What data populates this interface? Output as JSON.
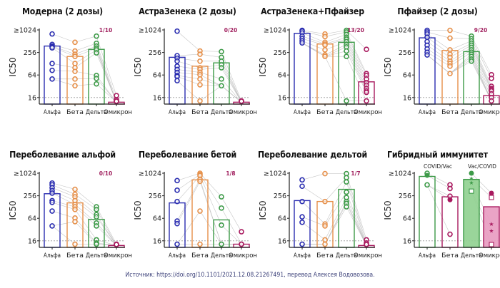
{
  "colors": {
    "alpha": "#2a2db0",
    "beta": "#e6904a",
    "delta": "#3d9a48",
    "omicron": "#a8195e",
    "link": "#bdbdbd",
    "threshold": "#9a9a9a",
    "hybrid_alpha_fill": "#ffffff",
    "hybrid_delta_fill": "#8fd08f",
    "hybrid_omicron_fill": "#e89ac0"
  },
  "source": "Источник: https://doi.org/10.1101/2021.12.08.21267491, перевод Алексея Водовозова.",
  "chart_data": [
    {
      "type": "bar",
      "title": "Модерна (2 дозы)",
      "ylabel": "IC50",
      "yscale": "log2",
      "ylim": [
        11,
        1024
      ],
      "yticks": [
        "16",
        "64",
        "256",
        "≥1024"
      ],
      "threshold": 16,
      "categories": [
        "Альфа",
        "Бета",
        "Дельта",
        "Омикрон"
      ],
      "annotation": "1/10",
      "bars": [
        380,
        200,
        310,
        12
      ],
      "points": [
        [
          800,
          420,
          380,
          360,
          340,
          130,
          85,
          50
        ],
        [
          480,
          280,
          230,
          200,
          130,
          100,
          80,
          50,
          33
        ],
        [
          700,
          450,
          380,
          330,
          300,
          250,
          62,
          52,
          37
        ],
        [
          18,
          14,
          12,
          12,
          12,
          12,
          12,
          12
        ]
      ]
    },
    {
      "type": "bar",
      "title": "АстраЗенека (2 дозы)",
      "ylabel": "IC50",
      "yscale": "log2",
      "ylim": [
        11,
        1024
      ],
      "yticks": [
        "16",
        "64",
        "256",
        "≥1024"
      ],
      "threshold": 16,
      "categories": [
        "Альфа",
        "Бета",
        "Дельта",
        "Омикрон"
      ],
      "annotation": "0/20",
      "bars": [
        190,
        110,
        135,
        12
      ],
      "points": [
        [
          950,
          210,
          180,
          150,
          110,
          90,
          75,
          62,
          58,
          45
        ],
        [
          280,
          230,
          150,
          100,
          90,
          75,
          65,
          50,
          35,
          13
        ],
        [
          270,
          190,
          150,
          120,
          100,
          50,
          33
        ],
        [
          13,
          12,
          12,
          12,
          12,
          12,
          12
        ]
      ]
    },
    {
      "type": "bar",
      "title": "АстраЗенека+Пфайзер",
      "ylabel": "IC50",
      "yscale": "log2",
      "ylim": [
        11,
        1024
      ],
      "yticks": [
        "16",
        "64",
        "256",
        "≥1024"
      ],
      "threshold": 16,
      "categories": [
        "Альфа",
        "Бета",
        "Дельта",
        "Омикрон"
      ],
      "annotation": "13/20",
      "bars": [
        830,
        430,
        480,
        42
      ],
      "points": [
        [
          1000,
          950,
          850,
          700,
          600,
          520,
          460
        ],
        [
          800,
          680,
          480,
          430,
          400,
          300,
          220,
          200
        ],
        [
          1000,
          900,
          780,
          650,
          580,
          500,
          420,
          360,
          280,
          200,
          13
        ],
        [
          310,
          70,
          62,
          50,
          40,
          34,
          28,
          24,
          22,
          13
        ]
      ]
    },
    {
      "type": "bar",
      "title": "Пфайзер (2 дозы)",
      "ylabel": "IC50",
      "yscale": "log2",
      "ylim": [
        11,
        1024
      ],
      "yticks": [
        "16",
        "64",
        "256",
        "≥1024"
      ],
      "threshold": 16,
      "categories": [
        "Альфа",
        "Бета",
        "Дельта",
        "Омикрон"
      ],
      "annotation": "9/20",
      "bars": [
        630,
        290,
        270,
        18
      ],
      "points": [
        [
          1000,
          900,
          800,
          650,
          500,
          400,
          320,
          260,
          220
        ],
        [
          1000,
          620,
          300,
          230,
          190,
          150,
          130,
          110,
          70
        ],
        [
          700,
          600,
          520,
          450,
          400,
          350,
          300,
          260,
          230,
          200,
          170,
          150
        ],
        [
          65,
          52,
          32,
          28,
          26,
          24,
          20,
          16,
          13
        ]
      ]
    },
    {
      "type": "bar",
      "title": "Переболевание альфой",
      "ylabel": "IC50",
      "yscale": "log2",
      "ylim": [
        11,
        1024
      ],
      "yticks": [
        "16",
        "64",
        "256",
        "≥1024"
      ],
      "threshold": 16,
      "categories": [
        "Альфа",
        "Бета",
        "Дельта",
        "Омикрон"
      ],
      "annotation": "0/10",
      "bars": [
        290,
        165,
        60,
        12
      ],
      "points": [
        [
          560,
          500,
          420,
          350,
          300,
          190,
          170,
          100,
          40
        ],
        [
          380,
          280,
          240,
          190,
          150,
          130,
          110,
          65,
          52,
          13
        ],
        [
          130,
          110,
          80,
          70,
          48,
          40,
          17,
          14,
          13
        ],
        [
          13,
          12,
          12,
          12,
          12,
          12
        ]
      ]
    },
    {
      "type": "bar",
      "title": "Переболевание бетой",
      "ylabel": "IC50",
      "yscale": "log2",
      "ylim": [
        11,
        1024
      ],
      "yticks": [
        "16",
        "64",
        "256",
        "≥1024"
      ],
      "threshold": 16,
      "categories": [
        "Альфа",
        "Бета",
        "Дельта",
        "Омикрон"
      ],
      "annotation": "1/8",
      "bars": [
        165,
        680,
        58,
        13
      ],
      "points": [
        [
          650,
          360,
          180,
          54,
          46,
          13
        ],
        [
          1024,
          950,
          880,
          700,
          620,
          100,
          13
        ],
        [
          240,
          120,
          42,
          13
        ],
        [
          28,
          13,
          13
        ]
      ]
    },
    {
      "type": "bar",
      "title": "Переболевание дельтой",
      "ylabel": "IC50",
      "yscale": "log2",
      "ylim": [
        11,
        1024
      ],
      "yticks": [
        "16",
        "64",
        "256",
        "≥1024"
      ],
      "threshold": 16,
      "categories": [
        "Альфа",
        "Бета",
        "Дельта",
        "Омикрон"
      ],
      "annotation": "1/7",
      "bars": [
        190,
        180,
        380,
        12
      ],
      "points": [
        [
          680,
          460,
          180,
          70,
          50,
          13
        ],
        [
          1000,
          180,
          45,
          40,
          17,
          13
        ],
        [
          1000,
          780,
          600,
          320,
          230,
          180,
          160,
          130
        ],
        [
          17,
          14,
          12,
          12
        ]
      ]
    },
    {
      "type": "bar",
      "title": "Гибридный иммунитет",
      "ylabel": "IC50",
      "yscale": "log2",
      "ylim": [
        11,
        1024
      ],
      "yticks": [
        "16",
        "64",
        "256",
        "≥1024"
      ],
      "threshold": 16,
      "categories": [
        "Альфа",
        "Бета",
        "Дельта",
        "Омикрон"
      ],
      "groups": [
        "COVID/Vac",
        "Vac/COVID"
      ],
      "annotation": "",
      "bars": [
        840,
        240,
        700,
        130
      ],
      "points": [
        [
          1024,
          900,
          500
        ],
        [
          500,
          400,
          250,
          200,
          24
        ],
        [
          1024,
          750,
          580,
          340
        ],
        [
          300,
          230,
          45,
          30,
          12
        ]
      ],
      "markers": [
        [
          "open-circle",
          "filled-circle",
          "open-circle"
        ],
        [
          "open-circle",
          "open-circle",
          "open-circle",
          "filled-circle",
          "open-circle"
        ],
        [
          "filled-circle",
          "star",
          "star",
          "open-square"
        ],
        [
          "filled-circle",
          "open-square",
          "star",
          "star",
          "open-square"
        ]
      ]
    }
  ]
}
